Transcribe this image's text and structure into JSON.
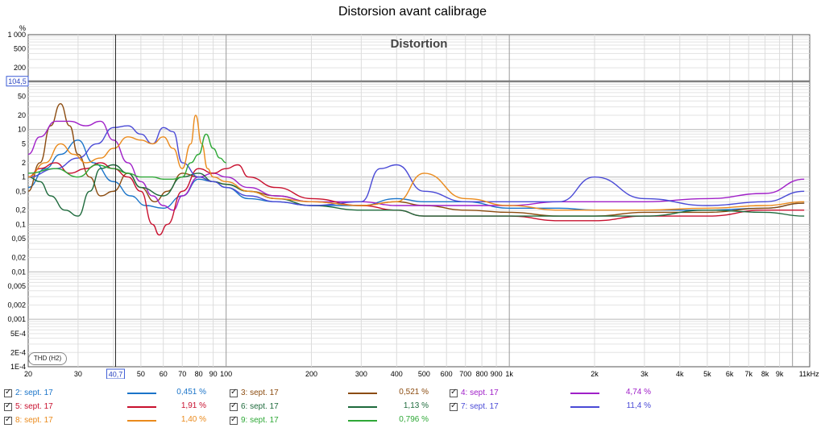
{
  "window": {
    "title": "Distorsion avant calibrage"
  },
  "chart_data": {
    "type": "line",
    "title": "Distortion",
    "ylabel": "%",
    "xunit": "kHz",
    "xscale": "log",
    "yscale": "log",
    "xlim": [
      20,
      11500
    ],
    "ylim": [
      0.0001,
      1000
    ],
    "grid": true,
    "mode_badge": "THD (H2)",
    "cursor_x": 40.7,
    "cursor_x_label": "40,7",
    "cursor_y": 104.5,
    "cursor_y_label": "104,5",
    "xticks": [
      {
        "v": 20,
        "l": "20"
      },
      {
        "v": 30,
        "l": "30"
      },
      {
        "v": 50,
        "l": "50"
      },
      {
        "v": 60,
        "l": "60"
      },
      {
        "v": 70,
        "l": "70"
      },
      {
        "v": 80,
        "l": "80"
      },
      {
        "v": 90,
        "l": "90"
      },
      {
        "v": 100,
        "l": "100"
      },
      {
        "v": 200,
        "l": "200"
      },
      {
        "v": 300,
        "l": "300"
      },
      {
        "v": 400,
        "l": "400"
      },
      {
        "v": 500,
        "l": "500"
      },
      {
        "v": 600,
        "l": "600"
      },
      {
        "v": 700,
        "l": "700"
      },
      {
        "v": 800,
        "l": "800"
      },
      {
        "v": 900,
        "l": "900"
      },
      {
        "v": 1000,
        "l": "1k"
      },
      {
        "v": 2000,
        "l": "2k"
      },
      {
        "v": 3000,
        "l": "3k"
      },
      {
        "v": 4000,
        "l": "4k"
      },
      {
        "v": 5000,
        "l": "5k"
      },
      {
        "v": 6000,
        "l": "6k"
      },
      {
        "v": 7000,
        "l": "7k"
      },
      {
        "v": 8000,
        "l": "8k"
      },
      {
        "v": 9000,
        "l": "9k"
      },
      {
        "v": 11000,
        "l": "11kHz"
      }
    ],
    "yticks": [
      {
        "v": 1000,
        "l": "1 000"
      },
      {
        "v": 500,
        "l": "500"
      },
      {
        "v": 200,
        "l": "200"
      },
      {
        "v": 50,
        "l": "50"
      },
      {
        "v": 20,
        "l": "20"
      },
      {
        "v": 10,
        "l": "10"
      },
      {
        "v": 5,
        "l": "5"
      },
      {
        "v": 2,
        "l": "2"
      },
      {
        "v": 1,
        "l": "1"
      },
      {
        "v": 0.5,
        "l": "0,5"
      },
      {
        "v": 0.2,
        "l": "0,2"
      },
      {
        "v": 0.1,
        "l": "0,1"
      },
      {
        "v": 0.05,
        "l": "0,05"
      },
      {
        "v": 0.02,
        "l": "0,02"
      },
      {
        "v": 0.01,
        "l": "0,01"
      },
      {
        "v": 0.005,
        "l": "0,005"
      },
      {
        "v": 0.002,
        "l": "0,002"
      },
      {
        "v": 0.001,
        "l": "0,001"
      },
      {
        "v": 0.0005,
        "l": "5E-4"
      },
      {
        "v": 0.0002,
        "l": "2E-4"
      },
      {
        "v": 0.0001,
        "l": "1E-4"
      }
    ],
    "series": [
      {
        "name": "2: sept. 17",
        "value": "0,451 %",
        "color": "#1a74c9",
        "x": [
          20,
          23,
          26,
          30,
          34,
          40,
          46,
          52,
          60,
          70,
          80,
          90,
          100,
          120,
          150,
          200,
          300,
          400,
          500,
          700,
          1000,
          1500,
          2000,
          3000,
          5000,
          8000,
          11000
        ],
        "y": [
          0.6,
          1.5,
          3,
          6,
          2,
          0.8,
          0.4,
          0.25,
          0.22,
          0.4,
          0.9,
          0.8,
          0.6,
          0.35,
          0.3,
          0.25,
          0.25,
          0.35,
          0.3,
          0.3,
          0.22,
          0.22,
          0.2,
          0.2,
          0.2,
          0.22,
          0.28
        ]
      },
      {
        "name": "3: sept. 17",
        "value": "0,521 %",
        "color": "#8b4b0f",
        "x": [
          20,
          22,
          24,
          26,
          28,
          30,
          33,
          36,
          40,
          45,
          50,
          56,
          62,
          70,
          80,
          90,
          100,
          120,
          150,
          200,
          300,
          400,
          500,
          700,
          1000,
          1500,
          2000,
          3000,
          5000,
          8000,
          11000
        ],
        "y": [
          0.5,
          2,
          12,
          35,
          12,
          3,
          1,
          0.4,
          0.5,
          1.2,
          0.6,
          0.3,
          0.5,
          1.2,
          1.0,
          0.8,
          0.7,
          0.5,
          0.4,
          0.3,
          0.25,
          0.3,
          0.25,
          0.2,
          0.18,
          0.15,
          0.15,
          0.18,
          0.18,
          0.22,
          0.28
        ]
      },
      {
        "name": "4: sept. 17",
        "value": "4,74 %",
        "color": "#a020c8",
        "x": [
          20,
          22,
          25,
          28,
          32,
          36,
          40,
          45,
          50,
          55,
          60,
          65,
          70,
          80,
          90,
          100,
          120,
          150,
          200,
          300,
          400,
          500,
          700,
          1000,
          1500,
          2000,
          3000,
          5000,
          8000,
          11000
        ],
        "y": [
          3,
          7,
          15,
          15,
          12,
          15,
          6,
          2,
          0.8,
          0.4,
          0.25,
          0.2,
          0.4,
          1.0,
          1.2,
          1.0,
          0.6,
          0.4,
          0.3,
          0.3,
          0.25,
          0.25,
          0.25,
          0.25,
          0.3,
          0.3,
          0.3,
          0.35,
          0.45,
          0.9
        ]
      },
      {
        "name": "5: sept. 17",
        "value": "1,91 %",
        "color": "#c8102e",
        "x": [
          20,
          22,
          25,
          28,
          32,
          36,
          40,
          45,
          50,
          55,
          58,
          62,
          70,
          80,
          90,
          100,
          110,
          120,
          150,
          200,
          300,
          400,
          500,
          700,
          1000,
          1500,
          2000,
          3000,
          5000,
          8000,
          11000
        ],
        "y": [
          1.0,
          1.5,
          2,
          1.2,
          1.5,
          2,
          1.5,
          1.0,
          0.5,
          0.1,
          0.06,
          0.1,
          0.5,
          1.5,
          1.2,
          1.5,
          1.8,
          1.0,
          0.6,
          0.35,
          0.25,
          0.2,
          0.15,
          0.15,
          0.15,
          0.12,
          0.12,
          0.15,
          0.15,
          0.2,
          0.2
        ]
      },
      {
        "name": "6: sept. 17",
        "value": "1,13 %",
        "color": "#1e6a3c",
        "x": [
          20,
          22,
          24,
          27,
          30,
          33,
          36,
          40,
          45,
          50,
          60,
          70,
          80,
          90,
          100,
          120,
          150,
          200,
          300,
          400,
          500,
          700,
          1000,
          1500,
          2000,
          3000,
          5000,
          8000,
          11000
        ],
        "y": [
          1.0,
          0.8,
          0.4,
          0.2,
          0.15,
          0.5,
          1.5,
          1.8,
          1.2,
          0.6,
          0.4,
          1.0,
          1.2,
          0.8,
          0.7,
          0.5,
          0.35,
          0.25,
          0.2,
          0.2,
          0.15,
          0.15,
          0.15,
          0.15,
          0.15,
          0.15,
          0.2,
          0.18,
          0.15
        ]
      },
      {
        "name": "7: sept. 17",
        "value": "11,4 %",
        "color": "#4a4ad6",
        "x": [
          20,
          25,
          30,
          35,
          40,
          45,
          50,
          55,
          60,
          65,
          70,
          80,
          90,
          100,
          120,
          150,
          200,
          300,
          350,
          400,
          500,
          700,
          1000,
          1500,
          2000,
          3000,
          5000,
          8000,
          11000
        ],
        "y": [
          1.0,
          1.5,
          2.5,
          5,
          11,
          12,
          8,
          5,
          11,
          9,
          2,
          1.0,
          0.8,
          0.6,
          0.4,
          0.3,
          0.25,
          0.3,
          1.5,
          1.8,
          0.5,
          0.3,
          0.3,
          0.3,
          1.0,
          0.35,
          0.25,
          0.3,
          0.5
        ]
      },
      {
        "name": "8: sept. 17",
        "value": "1,40 %",
        "color": "#ea8a1c",
        "x": [
          20,
          23,
          26,
          29,
          32,
          36,
          40,
          45,
          50,
          55,
          60,
          65,
          70,
          75,
          78,
          82,
          86,
          90,
          100,
          120,
          150,
          200,
          300,
          400,
          500,
          700,
          1000,
          1500,
          2000,
          3000,
          5000,
          8000,
          11000
        ],
        "y": [
          1.0,
          2,
          5,
          3,
          2,
          2.5,
          4,
          7,
          6,
          5,
          7,
          4,
          1.5,
          5,
          20,
          5,
          1.5,
          1.0,
          0.8,
          0.5,
          0.35,
          0.3,
          0.25,
          0.3,
          1.2,
          0.35,
          0.25,
          0.2,
          0.2,
          0.2,
          0.22,
          0.25,
          0.3
        ]
      },
      {
        "name": "9: sept. 17",
        "value": "0,796 %",
        "color": "#2ea836",
        "x": [
          20,
          25,
          30,
          35,
          40,
          45,
          50,
          55,
          60,
          65,
          70,
          75,
          80,
          85,
          90,
          95,
          100
        ],
        "y": [
          1.2,
          1.5,
          1.0,
          1.8,
          1.5,
          1.2,
          1.0,
          1.0,
          0.9,
          0.9,
          1.0,
          2,
          3,
          8,
          4,
          2.5,
          2
        ]
      }
    ]
  }
}
